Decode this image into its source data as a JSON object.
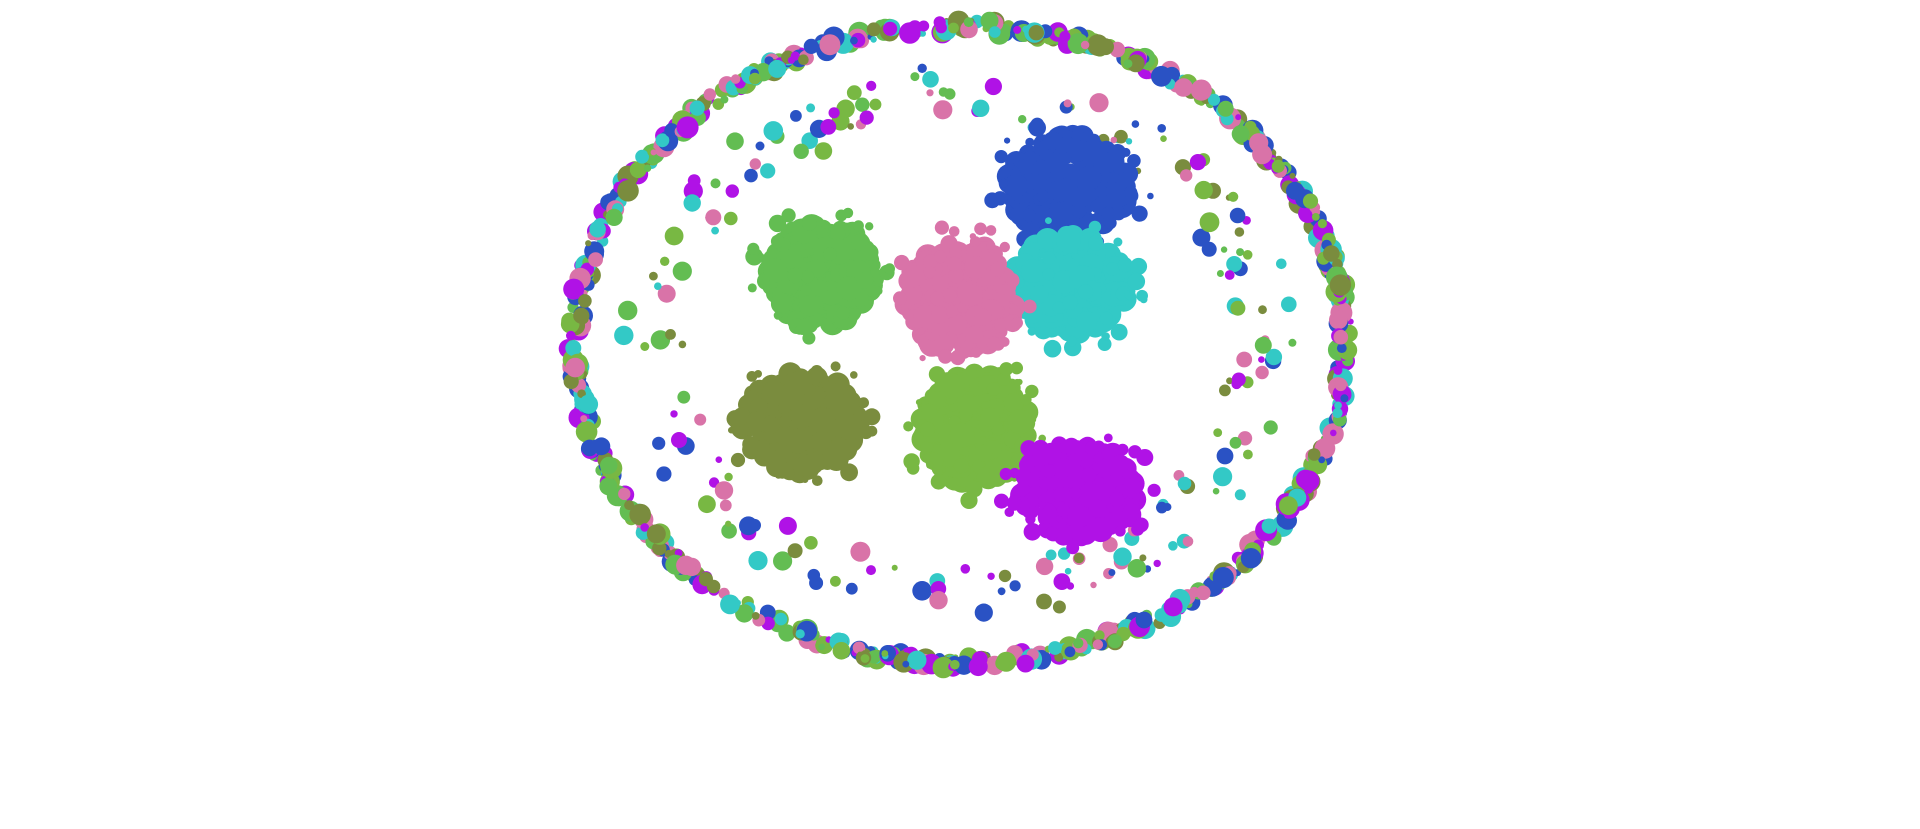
{
  "palette": {
    "background": "#ffffff",
    "blue": "#2a52c4",
    "pink": "#d973a8",
    "teal": "#33c9c6",
    "olive": "#7a8c3e",
    "light_green": "#78b843",
    "green": "#63bd52",
    "purple": "#b012e6"
  },
  "clusters": [
    {
      "name": "blue",
      "color": "blue"
    },
    {
      "name": "teal",
      "color": "teal"
    },
    {
      "name": "pink",
      "color": "pink"
    },
    {
      "name": "green",
      "color": "green"
    },
    {
      "name": "olive",
      "color": "olive"
    },
    {
      "name": "light-green",
      "color": "light_green"
    },
    {
      "name": "purple",
      "color": "purple"
    }
  ],
  "ring_colors": [
    "blue",
    "pink",
    "teal",
    "olive",
    "light_green",
    "green",
    "purple"
  ]
}
